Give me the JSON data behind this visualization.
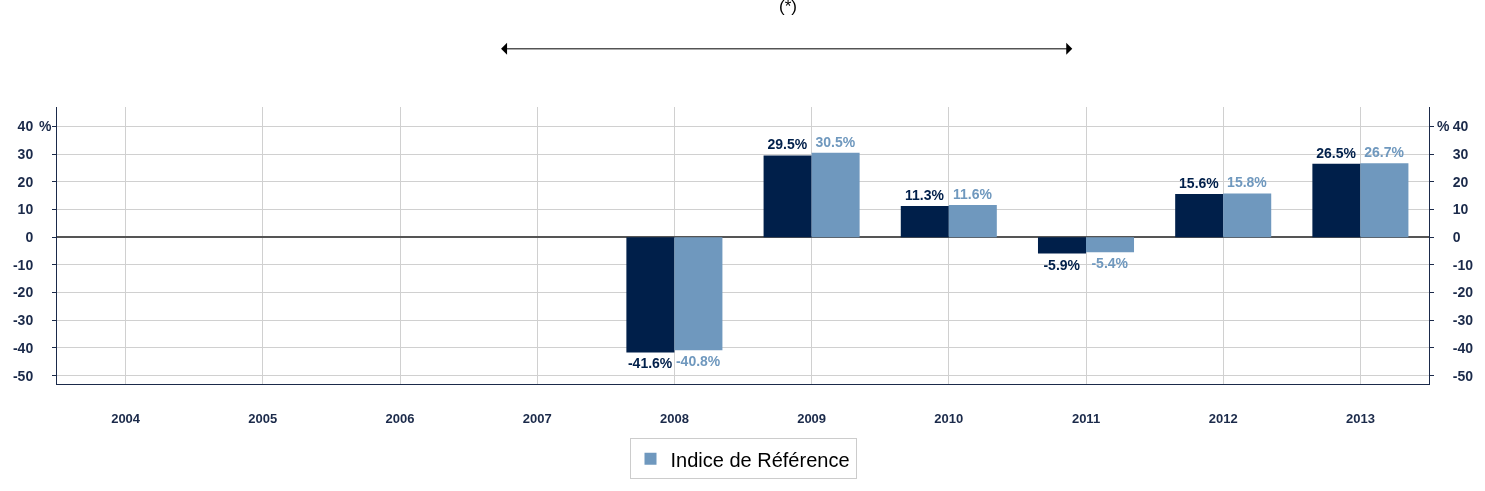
{
  "chart_data": {
    "type": "bar",
    "categories": [
      "2004",
      "2005",
      "2006",
      "2007",
      "2008",
      "2009",
      "2010",
      "2011",
      "2012",
      "2013"
    ],
    "series": [
      {
        "color": "#001f4a",
        "values": [
          null,
          null,
          null,
          null,
          -41.6,
          29.5,
          11.3,
          -5.9,
          15.6,
          26.5
        ],
        "value_labels": [
          null,
          null,
          null,
          null,
          "-41.6%",
          "29.5%",
          "11.3%",
          "-5.9%",
          "15.6%",
          "26.5%"
        ]
      },
      {
        "name": "Indice de Référence",
        "color": "#6f98be",
        "values": [
          null,
          null,
          null,
          null,
          -40.8,
          30.5,
          11.6,
          -5.4,
          15.8,
          26.7
        ],
        "value_labels": [
          null,
          null,
          null,
          null,
          "-40.8%",
          "30.5%",
          "11.6%",
          "-5.4%",
          "15.8%",
          "26.7%"
        ]
      }
    ],
    "ylabel": "%",
    "y2label": "%",
    "ylim": [
      -53,
      47
    ],
    "yticks": [
      -50,
      -40,
      -30,
      -20,
      -10,
      0,
      10,
      20,
      30,
      40
    ],
    "y2lim": [
      -53,
      47
    ],
    "y2ticks": [
      -50,
      -40,
      -30,
      -20,
      -10,
      0,
      10,
      20,
      30,
      40
    ],
    "annotations": [
      "(*)"
    ],
    "grid": true,
    "legend": "bottom"
  }
}
